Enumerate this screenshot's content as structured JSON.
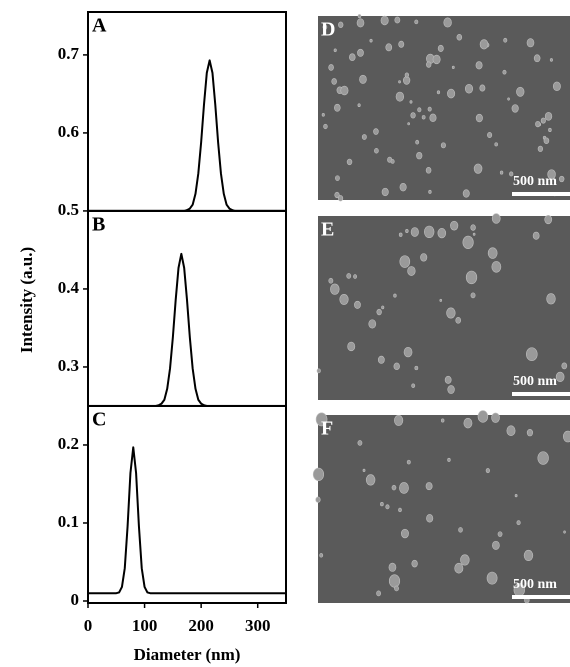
{
  "chart_data": {
    "type": "line",
    "ylabel": "Intensity (a.u.)",
    "xlabel": "Diameter (nm)",
    "panel_labels": [
      "A",
      "B",
      "C"
    ],
    "panel_bounds": [
      0.5,
      0.25
    ],
    "x": [
      0,
      5,
      10,
      15,
      20,
      25,
      30,
      35,
      40,
      45,
      50,
      55,
      60,
      65,
      70,
      75,
      80,
      85,
      90,
      95,
      100,
      105,
      110,
      115,
      120,
      125,
      130,
      135,
      140,
      145,
      150,
      155,
      160,
      165,
      170,
      175,
      180,
      185,
      190,
      195,
      200,
      205,
      210,
      215,
      220,
      225,
      230,
      235,
      240,
      245,
      250,
      255,
      260,
      265,
      270,
      275,
      280,
      285,
      290,
      295,
      300,
      305,
      310,
      315,
      320,
      325,
      330,
      335,
      340,
      345,
      350
    ],
    "series": [
      {
        "color": "#000000",
        "values": [
          0.5,
          0.5,
          0.5,
          0.5,
          0.5,
          0.5,
          0.5,
          0.5,
          0.5,
          0.5,
          0.5,
          0.5,
          0.5,
          0.5,
          0.5,
          0.5,
          0.5,
          0.5,
          0.5,
          0.5,
          0.5,
          0.5,
          0.5,
          0.5,
          0.5,
          0.5,
          0.5,
          0.5,
          0.5,
          0.5,
          0.5,
          0.5,
          0.5,
          0.5,
          0.5,
          0.501,
          0.503,
          0.508,
          0.522,
          0.548,
          0.588,
          0.636,
          0.677,
          0.693,
          0.677,
          0.636,
          0.588,
          0.548,
          0.522,
          0.508,
          0.503,
          0.501,
          0.5,
          0.5,
          0.5,
          0.5,
          0.5,
          0.5,
          0.5,
          0.5,
          0.5,
          0.5,
          0.5,
          0.5,
          0.5,
          0.5,
          0.5,
          0.5,
          0.5,
          0.5,
          0.5
        ]
      },
      {
        "color": "#000000",
        "values": [
          0.25,
          0.25,
          0.25,
          0.25,
          0.25,
          0.25,
          0.25,
          0.25,
          0.25,
          0.25,
          0.25,
          0.25,
          0.25,
          0.25,
          0.25,
          0.25,
          0.25,
          0.25,
          0.25,
          0.25,
          0.25,
          0.25,
          0.25,
          0.25,
          0.25,
          0.251,
          0.253,
          0.258,
          0.272,
          0.298,
          0.338,
          0.386,
          0.427,
          0.445,
          0.427,
          0.386,
          0.338,
          0.298,
          0.272,
          0.258,
          0.253,
          0.251,
          0.25,
          0.25,
          0.25,
          0.25,
          0.25,
          0.25,
          0.25,
          0.25,
          0.25,
          0.25,
          0.25,
          0.25,
          0.25,
          0.25,
          0.25,
          0.25,
          0.25,
          0.25,
          0.25,
          0.25,
          0.25,
          0.25,
          0.25,
          0.25,
          0.25,
          0.25,
          0.25,
          0.25,
          0.25
        ]
      },
      {
        "color": "#000000",
        "values": [
          0.01,
          0.01,
          0.01,
          0.01,
          0.01,
          0.01,
          0.01,
          0.01,
          0.01,
          0.01,
          0.01,
          0.011,
          0.018,
          0.042,
          0.096,
          0.164,
          0.197,
          0.164,
          0.096,
          0.042,
          0.018,
          0.011,
          0.01,
          0.01,
          0.01,
          0.01,
          0.01,
          0.01,
          0.01,
          0.01,
          0.01,
          0.01,
          0.01,
          0.01,
          0.01,
          0.01,
          0.01,
          0.01,
          0.01,
          0.01,
          0.01,
          0.01,
          0.01,
          0.01,
          0.01,
          0.01,
          0.01,
          0.01,
          0.01,
          0.01,
          0.01,
          0.01,
          0.01,
          0.01,
          0.01,
          0.01,
          0.01,
          0.01,
          0.01,
          0.01,
          0.01,
          0.01,
          0.01,
          0.01,
          0.01,
          0.01,
          0.01,
          0.01,
          0.01,
          0.01,
          0.01
        ]
      }
    ],
    "xlim": [
      0,
      350
    ],
    "xticks": [
      0,
      100,
      200,
      300
    ],
    "ylim": [
      0,
      0.755
    ],
    "yticks": [
      0,
      0.1,
      0.2,
      0.3,
      0.4,
      0.5,
      0.6,
      0.7
    ]
  },
  "images": [
    {
      "label": "D",
      "scale": "500 nm"
    },
    {
      "label": "E",
      "scale": "500 nm"
    },
    {
      "label": "F",
      "scale": "500 nm"
    }
  ]
}
